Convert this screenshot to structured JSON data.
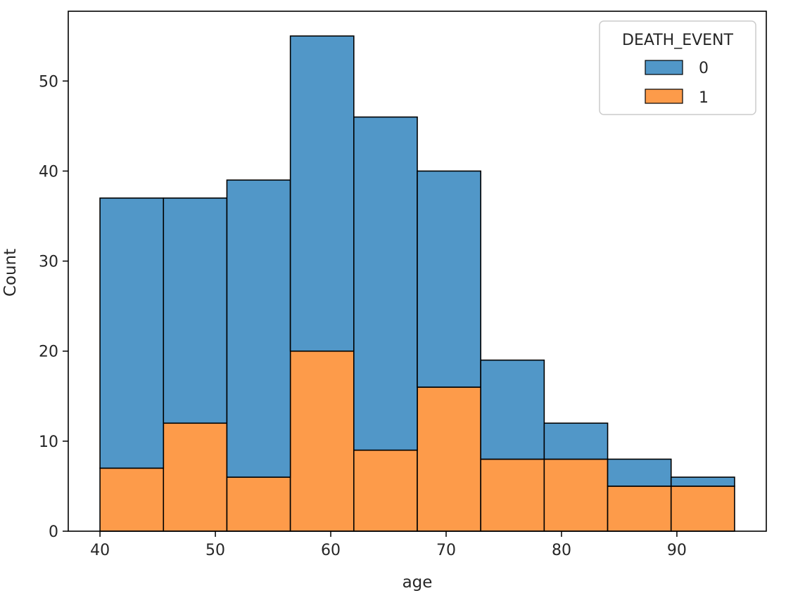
{
  "chart_data": {
    "type": "bar",
    "stacked": true,
    "xlabel": "age",
    "ylabel": "Count",
    "xlim": [
      37.25,
      97.75
    ],
    "ylim": [
      0,
      57.75
    ],
    "xticks": [
      40,
      50,
      60,
      70,
      80,
      90
    ],
    "yticks": [
      0,
      10,
      20,
      30,
      40,
      50
    ],
    "bin_edges": [
      40,
      45.5,
      51,
      56.5,
      62,
      67.5,
      73,
      78.5,
      84,
      89.5,
      95
    ],
    "series": [
      {
        "name": "1",
        "color": "#fd9b4a",
        "values": [
          7,
          12,
          6,
          20,
          9,
          16,
          8,
          8,
          5,
          5
        ]
      },
      {
        "name": "0",
        "color": "#5197c8",
        "values": [
          30,
          25,
          33,
          35,
          37,
          24,
          11,
          4,
          3,
          1
        ]
      }
    ],
    "totals": [
      37,
      37,
      39,
      55,
      46,
      40,
      19,
      12,
      8,
      6
    ],
    "legend": {
      "title": "DEATH_EVENT",
      "placement": "top-right",
      "entries": [
        {
          "label": "0",
          "color": "#5197c8"
        },
        {
          "label": "1",
          "color": "#fd9b4a"
        }
      ]
    },
    "grid": false
  }
}
